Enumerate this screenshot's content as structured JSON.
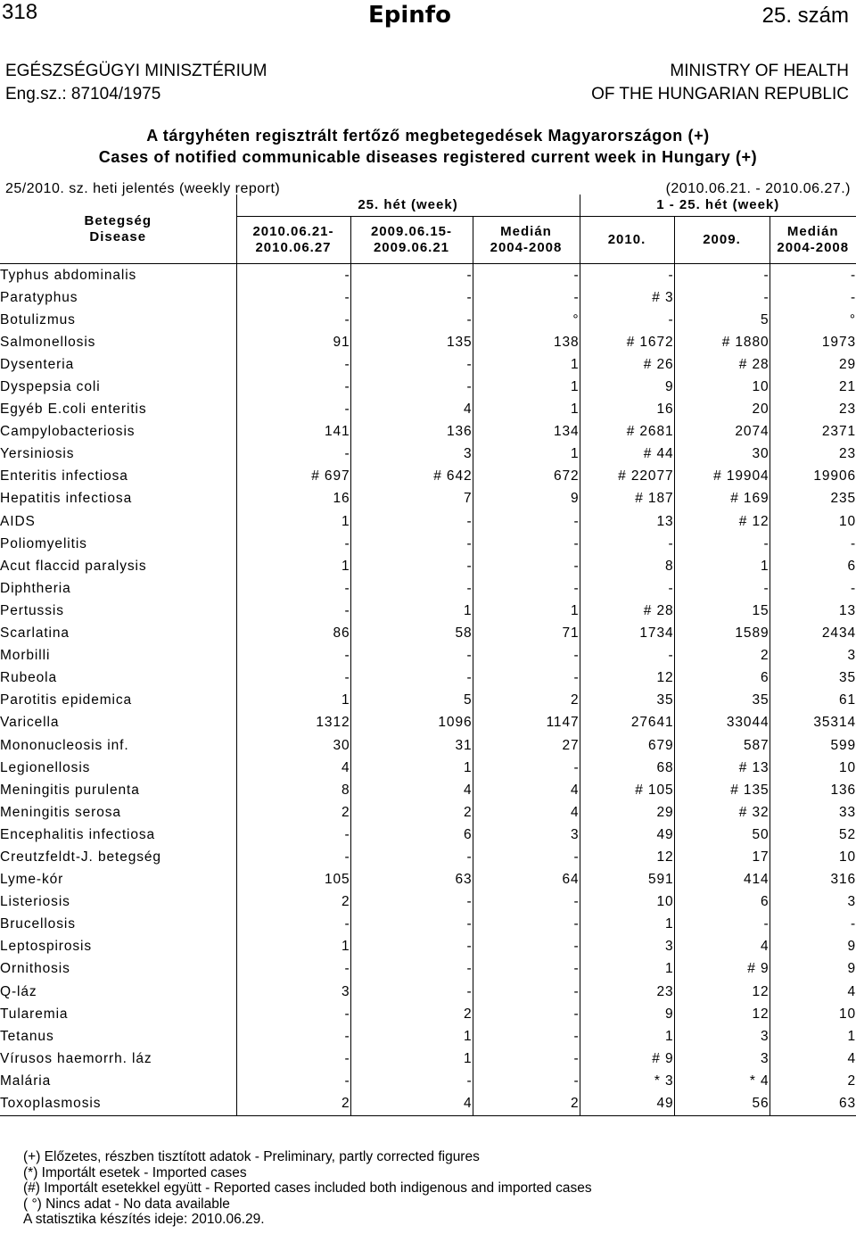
{
  "header": {
    "page_number": "318",
    "logo_text": "Epinfo",
    "issue": "25. szám",
    "left_line1": "EGÉSZSÉGÜGYI MINISZTÉRIUM",
    "left_line2": "Eng.sz.: 87104/1975",
    "right_line1": "MINISTRY OF HEALTH",
    "right_line2": "OF THE HUNGARIAN REPUBLIC"
  },
  "title": {
    "hu": "A tárgyhéten regisztrált fertőző megbetegedések Magyarországon (+)",
    "en": "Cases of notified communicable diseases registered current week in Hungary (+)"
  },
  "report": {
    "label": "25/2010. sz. heti jelentés (weekly report)",
    "period": "(2010.06.21. - 2010.06.27.)"
  },
  "table": {
    "h_disease_hu": "Betegség",
    "h_disease_en": "Disease",
    "h_group1": "25. hét (week)",
    "h_group2": "1 - 25. hét (week)",
    "h_c1": "2010.06.21-\n2010.06.27",
    "h_c2": "2009.06.15-\n2009.06.21",
    "h_c3": "Medián\n2004-2008",
    "h_c4": "2010.",
    "h_c5": "2009.",
    "h_c6": "Medián\n2004-2008",
    "rows": [
      [
        "Typhus abdominalis",
        "-",
        "-",
        "-",
        "-",
        "-",
        "-"
      ],
      [
        "Paratyphus",
        "-",
        "-",
        "-",
        "# 3",
        "-",
        "-"
      ],
      [
        "Botulizmus",
        "-",
        "-",
        "°",
        "-",
        "5",
        "°"
      ],
      [
        "Salmonellosis",
        "91",
        "135",
        "138",
        "# 1672",
        "# 1880",
        "1973"
      ],
      [
        "Dysenteria",
        "-",
        "-",
        "1",
        "# 26",
        "# 28",
        "29"
      ],
      [
        "Dyspepsia coli",
        "-",
        "-",
        "1",
        "9",
        "10",
        "21"
      ],
      [
        "Egyéb E.coli enteritis",
        "-",
        "4",
        "1",
        "16",
        "20",
        "23"
      ],
      [
        "Campylobacteriosis",
        "141",
        "136",
        "134",
        "# 2681",
        "2074",
        "2371"
      ],
      [
        "Yersiniosis",
        "-",
        "3",
        "1",
        "# 44",
        "30",
        "23"
      ],
      [
        "Enteritis infectiosa",
        "# 697",
        "# 642",
        "672",
        "# 22077",
        "# 19904",
        "19906"
      ],
      [
        "Hepatitis infectiosa",
        "16",
        "7",
        "9",
        "# 187",
        "# 169",
        "235"
      ],
      [
        "AIDS",
        "1",
        "-",
        "-",
        "13",
        "# 12",
        "10"
      ],
      [
        "Poliomyelitis",
        "-",
        "-",
        "-",
        "-",
        "-",
        "-"
      ],
      [
        "Acut flaccid paralysis",
        "1",
        "-",
        "-",
        "8",
        "1",
        "6"
      ],
      [
        "Diphtheria",
        "-",
        "-",
        "-",
        "-",
        "-",
        "-"
      ],
      [
        "Pertussis",
        "-",
        "1",
        "1",
        "# 28",
        "15",
        "13"
      ],
      [
        "Scarlatina",
        "86",
        "58",
        "71",
        "1734",
        "1589",
        "2434"
      ],
      [
        "Morbilli",
        "-",
        "-",
        "-",
        "-",
        "2",
        "3"
      ],
      [
        "Rubeola",
        "-",
        "-",
        "-",
        "12",
        "6",
        "35"
      ],
      [
        "Parotitis epidemica",
        "1",
        "5",
        "2",
        "35",
        "35",
        "61"
      ],
      [
        "Varicella",
        "1312",
        "1096",
        "1147",
        "27641",
        "33044",
        "35314"
      ],
      [
        "Mononucleosis inf.",
        "30",
        "31",
        "27",
        "679",
        "587",
        "599"
      ],
      [
        "Legionellosis",
        "4",
        "1",
        "-",
        "68",
        "# 13",
        "10"
      ],
      [
        "Meningitis purulenta",
        "8",
        "4",
        "4",
        "# 105",
        "# 135",
        "136"
      ],
      [
        "Meningitis serosa",
        "2",
        "2",
        "4",
        "29",
        "# 32",
        "33"
      ],
      [
        "Encephalitis infectiosa",
        "-",
        "6",
        "3",
        "49",
        "50",
        "52"
      ],
      [
        "Creutzfeldt-J. betegség",
        "-",
        "-",
        "-",
        "12",
        "17",
        "10"
      ],
      [
        "Lyme-kór",
        "105",
        "63",
        "64",
        "591",
        "414",
        "316"
      ],
      [
        "Listeriosis",
        "2",
        "-",
        "-",
        "10",
        "6",
        "3"
      ],
      [
        "Brucellosis",
        "-",
        "-",
        "-",
        "1",
        "-",
        "-"
      ],
      [
        "Leptospirosis",
        "1",
        "-",
        "-",
        "3",
        "4",
        "9"
      ],
      [
        "Ornithosis",
        "-",
        "-",
        "-",
        "1",
        "# 9",
        "9"
      ],
      [
        "Q-láz",
        "3",
        "-",
        "-",
        "23",
        "12",
        "4"
      ],
      [
        "Tularemia",
        "-",
        "2",
        "-",
        "9",
        "12",
        "10"
      ],
      [
        "Tetanus",
        "-",
        "1",
        "-",
        "1",
        "3",
        "1"
      ],
      [
        "Vírusos haemorrh. láz",
        "-",
        "1",
        "-",
        "# 9",
        "3",
        "4"
      ],
      [
        "Malária",
        "-",
        "-",
        "-",
        "* 3",
        "* 4",
        "2"
      ],
      [
        "Toxoplasmosis",
        "2",
        "4",
        "2",
        "49",
        "56",
        "63"
      ]
    ]
  },
  "footer": {
    "note1": "(+) Előzetes, részben tisztított adatok - Preliminary, partly corrected figures",
    "note2": "(*) Importált esetek - Imported cases",
    "note3": "(#) Importált esetekkel együtt - Reported cases included both indigenous and imported cases",
    "note4": "( °) Nincs adat - No data available",
    "note5": "A statisztika készítés ideje: 2010.06.29."
  }
}
